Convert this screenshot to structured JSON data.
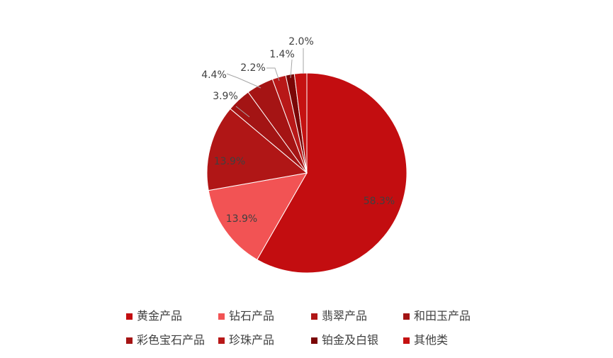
{
  "chart_data": {
    "type": "pie",
    "title": "",
    "categories": [
      "黄金产品",
      "钻石产品",
      "翡翠产品",
      "和田玉产品",
      "彩色宝石产品",
      "珍珠产品",
      "铂金及白银",
      "其他类"
    ],
    "values": [
      58.3,
      13.9,
      13.9,
      3.9,
      4.4,
      2.2,
      1.4,
      2.0
    ],
    "data_labels": [
      "58.3%",
      "13.9%",
      "13.9%",
      "3.9%",
      "4.4%",
      "2.2%",
      "1.4%",
      "2.0%"
    ],
    "colors": [
      "#C30D10",
      "#F25354",
      "#B01616",
      "#A31414",
      "#A51414",
      "#B81818",
      "#7A0606",
      "#C51111"
    ],
    "legend_position": "bottom",
    "start_angle": "12 o'clock, clockwise"
  },
  "legend": {
    "items": [
      {
        "label": "黄金产品",
        "color": "#C30D10"
      },
      {
        "label": "钻石产品",
        "color": "#F25354"
      },
      {
        "label": "翡翠产品",
        "color": "#B01616"
      },
      {
        "label": "和田玉产品",
        "color": "#A31414"
      },
      {
        "label": "彩色宝石产品",
        "color": "#A51414"
      },
      {
        "label": "珍珠产品",
        "color": "#B81818"
      },
      {
        "label": "铂金及白银",
        "color": "#7A0606"
      },
      {
        "label": "其他类",
        "color": "#C51111"
      }
    ]
  }
}
